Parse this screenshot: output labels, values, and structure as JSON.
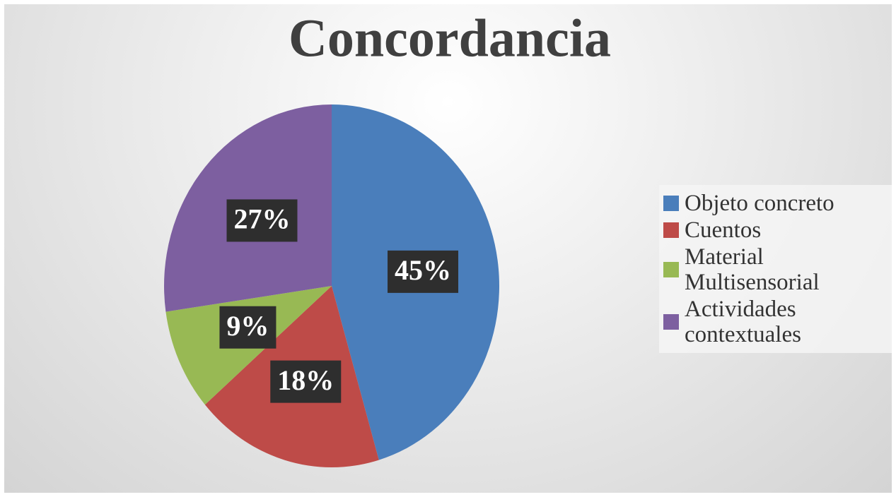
{
  "chart_data": {
    "type": "pie",
    "title": "Concordancia",
    "categories": [
      "Objeto concreto",
      "Cuentos",
      "Material Multisensorial",
      "Actividades contextuales"
    ],
    "values": [
      45,
      18,
      9,
      27
    ],
    "value_labels": [
      "45%",
      "18%",
      "9%",
      "27%"
    ],
    "colors": [
      "#4a7ebb",
      "#be4b48",
      "#98b954",
      "#7d5fa0"
    ],
    "legend": "right"
  }
}
